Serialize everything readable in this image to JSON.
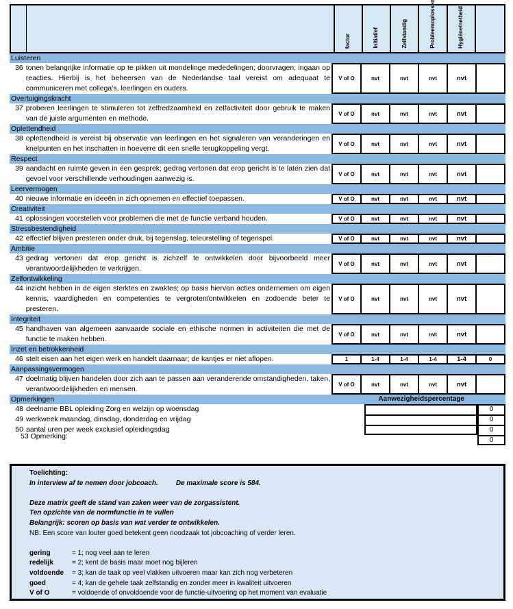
{
  "header": {
    "columns": [
      "factor",
      "Initiatief",
      "Zelfstandig",
      "Probleemoplossen",
      "Hygiëne/netheid",
      ""
    ]
  },
  "sections": [
    {
      "category": "Luisteren",
      "number": "36",
      "text": "tonen belangrijke informatie op te pikken uit mondelinge mededelingen; doorvragen; ingaan op reacties. Hierbij is het beheersen van de Nederlandse taal vereist om adequaat te communiceren met collega's, leerlingen en ouders.",
      "scores": [
        "V of O",
        "nvt",
        "nvt",
        "nvt",
        "nvt",
        ""
      ]
    },
    {
      "category": "Overtuigingskracht",
      "number": "37",
      "text": "proberen leerlingen te stimuleren tot zelfredzaamheid en zelfactiviteit door gebruik te maken van de juiste argumenten en methode.",
      "scores": [
        "V of O",
        "nvt",
        "nvt",
        "nvt",
        "nvt",
        ""
      ]
    },
    {
      "category": "Oplettendheid",
      "number": "38",
      "text": "oplettendheid is vereist bij observatie van leerlingen en het signaleren van veranderingen en knelpunten en het inschatten in hoeverre dit een snelle terugkoppeling vergt.",
      "scores": [
        "V of O",
        "nvt",
        "nvt",
        "nvt",
        "nvt",
        ""
      ]
    },
    {
      "category": "Respect",
      "number": "39",
      "text": "aandacht en ruimte geven in een gesprek; gedrag vertonen dat erop gericht is te laten zien dat gevoel voor verschillende verhoudingen aanwezig is.",
      "scores": [
        "V of O",
        "nvt",
        "nvt",
        "nvt",
        "nvt",
        ""
      ]
    },
    {
      "category": "Leervermogen",
      "number": "40",
      "text": "nieuwe informatie en ideeën in zich opnemen en effectief toepassen.",
      "scores": [
        "V of O",
        "nvt",
        "nvt",
        "nvt",
        "nvt",
        ""
      ]
    },
    {
      "category": "Creativiteit",
      "number": "41",
      "text": "oplossingen voorstellen voor problemen die met de functie verband houden.",
      "scores": [
        "V of O",
        "nvt",
        "nvt",
        "nvt",
        "nvt",
        ""
      ]
    },
    {
      "category": "Stressbestendigheid",
      "number": "42",
      "text": "effectief blijven presteren onder druk, bij tegenslag, teleurstelling of tegenspel.",
      "scores": [
        "V of O",
        "nvt",
        "nvt",
        "nvt",
        "nvt",
        ""
      ]
    },
    {
      "category": "Ambitie",
      "number": "43",
      "text": "gedrag vertonen dat erop gericht is zichzelf te ontwikkelen door bijvoorbeeld meer verantwoordelijkheden te verkrijgen.",
      "scores": [
        "V of O",
        "nvt",
        "nvt",
        "nvt",
        "nvt",
        ""
      ]
    },
    {
      "category": "Zelfontwikkeling",
      "number": "44",
      "text": "inzicht hebben in de eigen sterktes en zwaktes; op basis hiervan acties ondernemen om eigen kennis, vaardigheden en competenties te vergroten/ontwikkelen en zodoende beter te presteren.",
      "scores": [
        "V of O",
        "nvt",
        "nvt",
        "nvt",
        "nvt",
        ""
      ]
    },
    {
      "category": "Integriteit",
      "number": "45",
      "text": "handhaven van algemeen aanvaarde sociale en ethische normen in activiteiten die met de functie te maken hebben.",
      "scores": [
        "V of O",
        "nvt",
        "nvt",
        "nvt",
        "nvt",
        ""
      ]
    },
    {
      "category": "Inzet en betrokkenheid",
      "number": "46",
      "text": "stelt eisen aan het eigen werk en handelt daarnaar; de kantjes er niet aflopen.",
      "scores": [
        "1",
        "1-4",
        "1-4",
        "1-4",
        "1-4",
        "0"
      ]
    },
    {
      "category": "Aanpassingsvermogen",
      "number": "47",
      "text": "doelmatig blijven handelen door zich aan te passen aan veranderende omstandigheden, taken, verantwoordelijkheden en mensen.",
      "scores": [
        "V of O",
        "nvt",
        "nvt",
        "nvt",
        "nvt",
        ""
      ]
    }
  ],
  "remarks": {
    "category": "Opmerkingen",
    "attendance_header": "Aanwezigheidspercentage",
    "items": [
      {
        "number": "48",
        "text": "deelname BBL opleiding Zorg en welzijn op woensdag",
        "value": "0"
      },
      {
        "number": "49",
        "text": "werkweek maandag, dinsdag, donderdag  en vrijdag",
        "value": "0"
      },
      {
        "number": "50",
        "text": "aantal uren per week exclusief opleidingsdag",
        "value": "0"
      },
      {
        "number": "",
        "text": "",
        "value": "0"
      }
    ],
    "opmerking": "53  Opmerking:"
  },
  "toelichting": {
    "title": "Toelichting:",
    "line1": "In interview af te nemen door jobcoach.",
    "line1b": "De maximale score is 584.",
    "line2": "Deze matrix geeft de stand van zaken weer van de zorgassistent.",
    "line3": "Ten opzichte van de normfunctie in te vullen",
    "line4": "Belangrijk: scoren op basis van wat verder te ontwikkelen.",
    "line5": "NB: Een score van louter goed betekent geen noodzaak tot jobcoaching of verder leren.",
    "legend": [
      {
        "key": "gering",
        "desc": "= 1; nog veel aan te leren"
      },
      {
        "key": "redelijk",
        "desc": "= 2; kent de basis maar moet nog  bijleren"
      },
      {
        "key": "voldoende",
        "desc": "= 3; kan de taak op veel vlakken uitvoeren maar kan zich nog verbeteren"
      },
      {
        "key": "goed",
        "desc": "= 4; kan de gehele taak zelfstandig en zonder meer in kwaliteit uitvoeren"
      },
      {
        "key": "V of O",
        "desc": "= voldoende of onvoldoende voor de functie-uitvoering op het moment van evaluatie"
      }
    ]
  },
  "colors": {
    "header_bg": "#d6e7f4",
    "category_bg": "#8db8e0",
    "note_bg": "#dae8f5"
  }
}
